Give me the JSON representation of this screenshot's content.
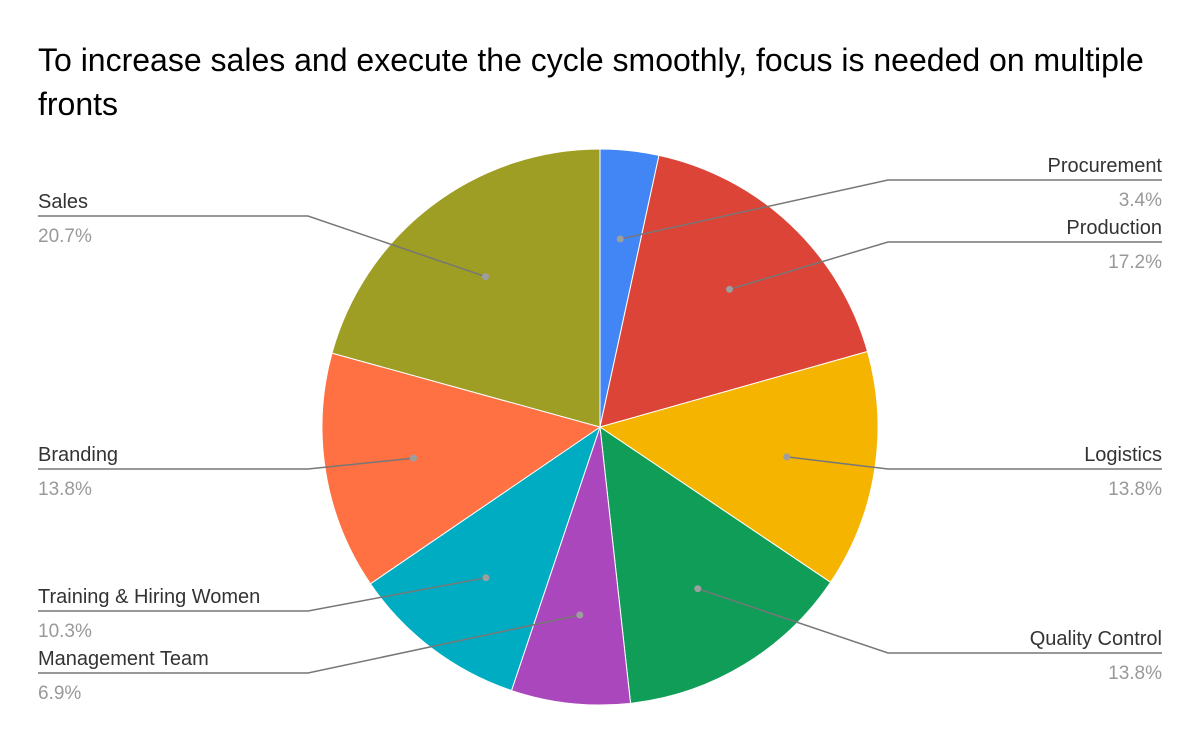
{
  "chart_data": {
    "type": "pie",
    "title": "To increase sales and execute the cycle smoothly, focus is needed on multiple fronts",
    "legend": "labeled leader lines",
    "slices": [
      {
        "name": "Procurement",
        "value": 3.4,
        "label": "3.4%",
        "color": "#4285f4"
      },
      {
        "name": "Production",
        "value": 17.2,
        "label": "17.2%",
        "color": "#db4437"
      },
      {
        "name": "Logistics",
        "value": 13.8,
        "label": "13.8%",
        "color": "#f4b400"
      },
      {
        "name": "Quality Control",
        "value": 13.8,
        "label": "13.8%",
        "color": "#0f9d58"
      },
      {
        "name": "Management Team",
        "value": 6.9,
        "label": "6.9%",
        "color": "#ab47bc"
      },
      {
        "name": "Training & Hiring Women",
        "value": 10.3,
        "label": "10.3%",
        "color": "#00acc1"
      },
      {
        "name": "Branding",
        "value": 13.8,
        "label": "13.8%",
        "color": "#ff7043"
      },
      {
        "name": "Sales",
        "value": 20.7,
        "label": "20.7%",
        "color": "#9e9d24"
      }
    ]
  }
}
